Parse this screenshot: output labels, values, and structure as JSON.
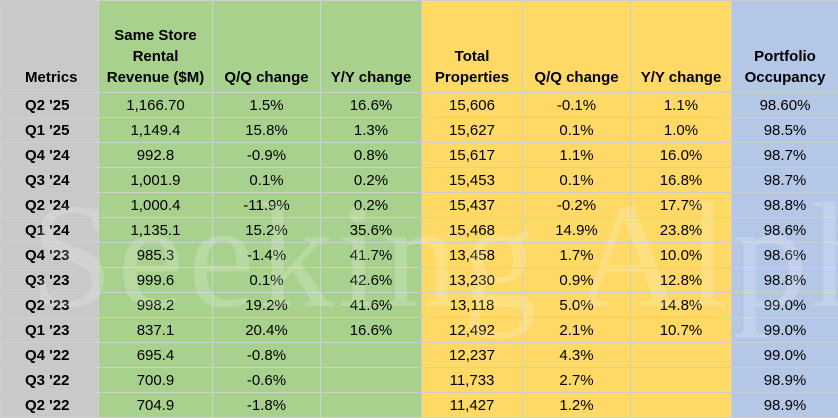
{
  "table": {
    "headers": [
      "Metrics",
      "Same Store Rental Revenue ($M)",
      "Q/Q change",
      "Y/Y change",
      "Total Properties",
      "Q/Q change",
      "Y/Y change",
      "Portfolio Occupancy"
    ],
    "header_colors": [
      "#c9c9c9",
      "#a9d18e",
      "#a9d18e",
      "#a9d18e",
      "#ffd966",
      "#ffd966",
      "#ffd966",
      "#b4c7e7"
    ],
    "rows": [
      [
        "Q2 '25",
        "1,166.70",
        "1.5%",
        "16.6%",
        "15,606",
        "-0.1%",
        "1.1%",
        "98.60%"
      ],
      [
        "Q1 '25",
        "1,149.4",
        "15.8%",
        "1.3%",
        "15,627",
        "0.1%",
        "1.0%",
        "98.5%"
      ],
      [
        "Q4 '24",
        "992.8",
        "-0.9%",
        "0.8%",
        "15,617",
        "1.1%",
        "16.0%",
        "98.7%"
      ],
      [
        "Q3 '24",
        "1,001.9",
        "0.1%",
        "0.2%",
        "15,453",
        "0.1%",
        "16.8%",
        "98.7%"
      ],
      [
        "Q2 '24",
        "1,000.4",
        "-11.9%",
        "0.2%",
        "15,437",
        "-0.2%",
        "17.7%",
        "98.8%"
      ],
      [
        "Q1 '24",
        "1,135.1",
        "15.2%",
        "35.6%",
        "15,468",
        "14.9%",
        "23.8%",
        "98.6%"
      ],
      [
        "Q4 '23",
        "985.3",
        "-1.4%",
        "41.7%",
        "13,458",
        "1.7%",
        "10.0%",
        "98.6%"
      ],
      [
        "Q3 '23",
        "999.6",
        "0.1%",
        "42.6%",
        "13,230",
        "0.9%",
        "12.8%",
        "98.8%"
      ],
      [
        "Q2 '23",
        "998.2",
        "19.2%",
        "41.6%",
        "13,118",
        "5.0%",
        "14.8%",
        "99.0%"
      ],
      [
        "Q1 '23",
        "837.1",
        "20.4%",
        "16.6%",
        "12,492",
        "2.1%",
        "10.7%",
        "99.0%"
      ],
      [
        "Q4 '22",
        "695.4",
        "-0.8%",
        "",
        "12,237",
        "4.3%",
        "",
        "99.0%"
      ],
      [
        "Q3 '22",
        "700.9",
        "-0.6%",
        "",
        "11,733",
        "2.7%",
        "",
        "98.9%"
      ],
      [
        "Q2 '22",
        "704.9",
        "-1.8%",
        "",
        "11,427",
        "1.2%",
        "",
        "98.9%"
      ]
    ]
  },
  "watermark": "Seeking Alpha"
}
